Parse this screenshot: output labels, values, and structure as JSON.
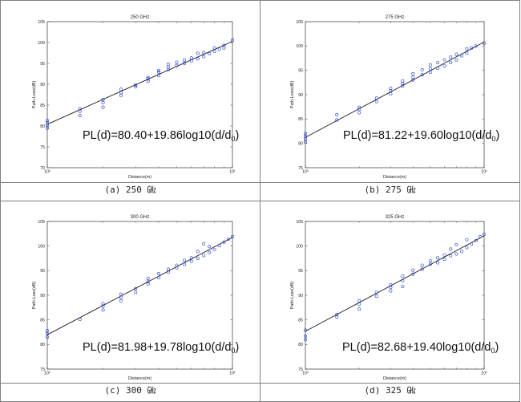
{
  "chart_data": [
    {
      "type": "scatter",
      "title": "250 GHz",
      "caption": "(a) 250 ㎓",
      "xlabel": "Distance(m)",
      "ylabel": "Path-Loss(dB)",
      "xscale": "log",
      "xlim": [
        1,
        10
      ],
      "ylim": [
        70,
        105
      ],
      "yticks": [
        70,
        75,
        80,
        85,
        90,
        95,
        100,
        105
      ],
      "xtick_labels": [
        "10⁰",
        "10¹"
      ],
      "equation": "PL(d)=80.40+19.86log10(d/d",
      "equation_sub": "0",
      "equation_close": ")",
      "fit": {
        "intercept": 80.4,
        "slope": 19.86
      },
      "marker_color": "#1f3fcf",
      "line_color": "#1a1a1a",
      "series": [
        {
          "x": [
            1.0,
            1.0,
            1.0,
            1.0,
            1.5,
            1.5,
            1.5,
            2.0,
            2.0,
            2.0,
            2.5,
            2.5,
            2.5,
            3.0,
            3.0,
            3.5,
            3.5,
            3.5,
            4.0,
            4.0,
            4.0,
            4.5,
            4.5,
            4.5,
            5.0,
            5.0,
            5.5,
            5.5,
            6.0,
            6.0,
            6.5,
            6.5,
            7.0,
            7.0,
            7.5,
            8.0,
            8.0,
            8.5,
            9.0,
            9.0,
            10.0
          ],
          "y": [
            79.5,
            80.2,
            80.8,
            81.3,
            82.5,
            83.5,
            84.1,
            84.5,
            85.6,
            86.3,
            87.3,
            88.0,
            88.8,
            89.4,
            89.8,
            90.7,
            91.3,
            91.6,
            92.1,
            92.9,
            93.3,
            93.5,
            94.1,
            94.8,
            94.5,
            95.3,
            95.0,
            95.8,
            95.6,
            96.3,
            96.1,
            97.4,
            96.6,
            97.6,
            97.3,
            97.9,
            98.7,
            98.4,
            99.3,
            98.7,
            100.6
          ]
        }
      ]
    },
    {
      "type": "scatter",
      "title": "275 GHz",
      "caption": "(b) 275 ㎓",
      "xlabel": "Distance(m)",
      "ylabel": "Path-Loss(dB)",
      "xscale": "log",
      "xlim": [
        1,
        10
      ],
      "ylim": [
        75,
        105
      ],
      "yticks": [
        75,
        80,
        85,
        90,
        95,
        100,
        105
      ],
      "xtick_labels": [
        "10⁰",
        "10¹"
      ],
      "equation": "PL(d)=81.22+19.60log10(d/d",
      "equation_sub": "0",
      "equation_close": ")",
      "fit": {
        "intercept": 81.22,
        "slope": 19.6
      },
      "marker_color": "#1f3fcf",
      "line_color": "#1a1a1a",
      "series": [
        {
          "x": [
            1.0,
            1.0,
            1.0,
            1.0,
            1.5,
            1.5,
            2.0,
            2.0,
            2.0,
            2.5,
            2.5,
            3.0,
            3.0,
            3.0,
            3.5,
            3.5,
            3.5,
            4.0,
            4.0,
            4.0,
            4.5,
            4.5,
            5.0,
            5.0,
            5.0,
            5.5,
            5.5,
            6.0,
            6.0,
            6.5,
            6.5,
            7.0,
            7.0,
            7.5,
            8.0,
            8.0,
            8.5,
            9.0,
            10.0
          ],
          "y": [
            80.3,
            80.9,
            81.4,
            82.0,
            84.8,
            85.9,
            86.3,
            87.0,
            87.4,
            88.6,
            89.3,
            90.2,
            90.8,
            91.3,
            91.8,
            92.3,
            92.8,
            93.0,
            93.6,
            94.3,
            94.1,
            95.1,
            94.6,
            95.3,
            96.1,
            95.4,
            96.6,
            95.9,
            97.2,
            96.6,
            97.7,
            97.1,
            98.3,
            98.0,
            98.5,
            99.4,
            99.6,
            100.0,
            100.6
          ]
        }
      ]
    },
    {
      "type": "scatter",
      "title": "300 GHz",
      "caption": "(c) 300 ㎓",
      "xlabel": "Distance(m)",
      "ylabel": "Path-Loss(dB)",
      "xscale": "log",
      "xlim": [
        1,
        10
      ],
      "ylim": [
        75,
        105
      ],
      "yticks": [
        75,
        80,
        85,
        90,
        95,
        100,
        105
      ],
      "xtick_labels": [
        "10⁰",
        "10¹"
      ],
      "equation": "PL(d)=81.98+19.78log10(d/d",
      "equation_sub": "0",
      "equation_close": ")",
      "fit": {
        "intercept": 81.98,
        "slope": 19.78
      },
      "marker_color": "#1f3fcf",
      "line_color": "#1a1a1a",
      "series": [
        {
          "x": [
            1.0,
            1.0,
            1.0,
            1.5,
            2.0,
            2.0,
            2.0,
            2.5,
            2.5,
            2.5,
            3.0,
            3.0,
            3.5,
            3.5,
            3.5,
            4.0,
            4.0,
            4.5,
            4.5,
            5.0,
            5.0,
            5.5,
            5.5,
            6.0,
            6.0,
            6.5,
            6.5,
            7.0,
            7.0,
            7.5,
            7.5,
            8.0,
            8.5,
            9.0,
            9.5,
            10.0
          ],
          "y": [
            81.5,
            82.2,
            82.8,
            85.1,
            87.0,
            87.8,
            88.3,
            88.9,
            89.6,
            90.2,
            90.6,
            91.3,
            92.3,
            92.8,
            93.4,
            93.6,
            94.4,
            94.7,
            95.3,
            95.6,
            96.1,
            96.3,
            97.1,
            96.9,
            97.6,
            97.5,
            98.9,
            98.1,
            100.5,
            98.7,
            99.9,
            99.3,
            100.1,
            100.8,
            101.4,
            101.9
          ]
        }
      ]
    },
    {
      "type": "scatter",
      "title": "325 GHz",
      "caption": "(d) 325 ㎓",
      "xlabel": "Distance(m)",
      "ylabel": "Path-Loss(dB)",
      "xscale": "log",
      "xlim": [
        1,
        10
      ],
      "ylim": [
        75,
        105
      ],
      "yticks": [
        75,
        80,
        85,
        90,
        95,
        100,
        105
      ],
      "xtick_labels": [
        "10⁰",
        "10¹"
      ],
      "equation": "PL(d)=82.68+19.40log10(d/d",
      "equation_sub": "0",
      "equation_close": ")",
      "fit": {
        "intercept": 82.68,
        "slope": 19.4
      },
      "marker_color": "#1f3fcf",
      "line_color": "#1a1a1a",
      "series": [
        {
          "x": [
            1.0,
            1.0,
            1.0,
            1.5,
            1.5,
            2.0,
            2.0,
            2.0,
            2.5,
            2.5,
            3.0,
            3.0,
            3.0,
            3.5,
            3.5,
            3.5,
            4.0,
            4.0,
            4.5,
            4.5,
            5.0,
            5.0,
            5.5,
            5.5,
            6.0,
            6.0,
            6.5,
            6.5,
            7.0,
            7.0,
            7.5,
            8.0,
            8.0,
            8.5,
            9.0,
            9.5,
            10.0
          ],
          "y": [
            81.0,
            81.7,
            82.9,
            85.6,
            86.1,
            87.2,
            88.2,
            88.9,
            89.8,
            90.6,
            90.9,
            91.6,
            92.1,
            91.8,
            93.0,
            93.9,
            94.3,
            95.1,
            95.3,
            96.1,
            96.3,
            97.0,
            96.6,
            97.6,
            97.3,
            98.2,
            98.0,
            99.4,
            98.4,
            100.3,
            98.9,
            99.7,
            101.3,
            100.4,
            101.1,
            101.9,
            102.4
          ]
        }
      ]
    }
  ]
}
